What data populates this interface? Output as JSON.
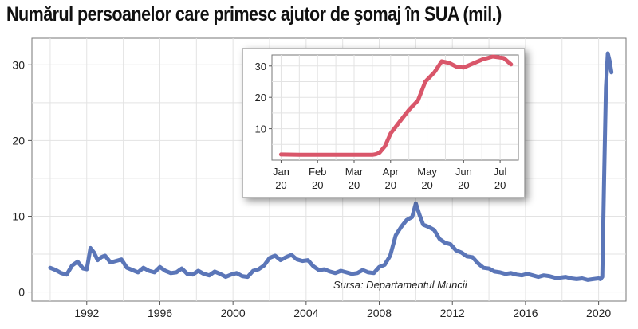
{
  "title": "Numărul persoanelor care primesc ajutor de şomaj în SUA (mil.)",
  "source": "Sursa: Departamentul Muncii",
  "colors": {
    "main_line": "#5b76b8",
    "inset_line": "#d9566a",
    "grid": "#e3e3e3"
  },
  "chart_data": [
    {
      "type": "line",
      "title": "",
      "xlabel": "",
      "ylabel": "",
      "xlim": [
        1989.0,
        2021.5
      ],
      "ylim": [
        -1.2,
        33.5
      ],
      "x_ticks": [
        1992,
        1996,
        2000,
        2004,
        2008,
        2012,
        2016,
        2020
      ],
      "y_ticks": [
        0,
        10,
        20,
        30
      ],
      "grid": true,
      "series": [
        {
          "x": [
            1990.0,
            1990.3,
            1990.6,
            1990.9,
            1991.2,
            1991.5,
            1991.8,
            1992.0,
            1992.2,
            1992.4,
            1992.6,
            1992.8,
            1993.0,
            1993.3,
            1993.6,
            1993.9,
            1994.2,
            1994.5,
            1994.8,
            1995.1,
            1995.4,
            1995.7,
            1996.0,
            1996.3,
            1996.6,
            1996.9,
            1997.2,
            1997.5,
            1997.8,
            1998.1,
            1998.4,
            1998.7,
            1999.0,
            1999.3,
            1999.6,
            1999.9,
            2000.2,
            2000.5,
            2000.8,
            2001.1,
            2001.4,
            2001.7,
            2002.0,
            2002.3,
            2002.6,
            2002.9,
            2003.2,
            2003.5,
            2003.8,
            2004.1,
            2004.4,
            2004.7,
            2005.0,
            2005.3,
            2005.6,
            2005.9,
            2006.2,
            2006.5,
            2006.8,
            2007.1,
            2007.4,
            2007.7,
            2008.0,
            2008.3,
            2008.6,
            2008.9,
            2009.2,
            2009.5,
            2009.8,
            2010.0,
            2010.2,
            2010.4,
            2010.7,
            2011.0,
            2011.3,
            2011.6,
            2011.9,
            2012.2,
            2012.5,
            2012.8,
            2013.1,
            2013.4,
            2013.7,
            2014.0,
            2014.3,
            2014.6,
            2014.9,
            2015.2,
            2015.5,
            2015.8,
            2016.1,
            2016.4,
            2016.7,
            2017.0,
            2017.3,
            2017.6,
            2017.9,
            2018.2,
            2018.5,
            2018.8,
            2019.1,
            2019.4,
            2019.7,
            2020.0,
            2020.1,
            2020.2,
            2020.3,
            2020.4,
            2020.5,
            2020.6,
            2020.7
          ],
          "y": [
            3.2,
            2.9,
            2.5,
            2.3,
            3.5,
            4.0,
            3.1,
            3.0,
            5.8,
            5.2,
            4.2,
            4.6,
            4.8,
            3.9,
            4.1,
            4.3,
            3.2,
            2.9,
            2.6,
            3.2,
            2.8,
            2.6,
            3.3,
            2.8,
            2.5,
            2.6,
            3.1,
            2.4,
            2.3,
            2.8,
            2.4,
            2.2,
            2.7,
            2.4,
            2.0,
            2.3,
            2.5,
            2.1,
            2.0,
            2.8,
            3.0,
            3.5,
            4.5,
            4.8,
            4.2,
            4.6,
            4.9,
            4.3,
            4.1,
            4.2,
            3.4,
            2.9,
            3.0,
            2.7,
            2.5,
            2.8,
            2.6,
            2.4,
            2.5,
            2.9,
            2.6,
            2.5,
            3.3,
            3.6,
            4.8,
            7.5,
            8.6,
            9.5,
            9.9,
            11.7,
            10.2,
            8.9,
            8.6,
            8.2,
            7.0,
            6.5,
            6.3,
            5.5,
            5.2,
            4.7,
            4.6,
            3.8,
            3.2,
            3.1,
            2.7,
            2.6,
            2.4,
            2.5,
            2.3,
            2.2,
            2.4,
            2.2,
            2.0,
            2.2,
            2.1,
            1.9,
            1.9,
            2.0,
            1.8,
            1.7,
            1.8,
            1.6,
            1.7,
            1.8,
            1.7,
            2.0,
            15.0,
            27.0,
            31.5,
            30.5,
            29.0
          ]
        }
      ]
    },
    {
      "type": "line",
      "title": "",
      "xlabel": "",
      "ylabel": "",
      "xlim": [
        -0.25,
        6.5
      ],
      "ylim": [
        0,
        33.5
      ],
      "x_ticks": [
        {
          "pos": 0,
          "label": [
            "Jan",
            "20"
          ]
        },
        {
          "pos": 1,
          "label": [
            "Feb",
            "20"
          ]
        },
        {
          "pos": 2,
          "label": [
            "Mar",
            "20"
          ]
        },
        {
          "pos": 3,
          "label": [
            "Apr",
            "20"
          ]
        },
        {
          "pos": 4,
          "label": [
            "May",
            "20"
          ]
        },
        {
          "pos": 5,
          "label": [
            "Jun",
            "20"
          ]
        },
        {
          "pos": 6,
          "label": [
            "Jul",
            "20"
          ]
        }
      ],
      "y_ticks": [
        10,
        20,
        30
      ],
      "grid": true,
      "series": [
        {
          "x": [
            0.0,
            0.5,
            1.0,
            1.5,
            2.0,
            2.3,
            2.5,
            2.6,
            2.7,
            2.85,
            3.0,
            3.2,
            3.5,
            3.75,
            3.95,
            4.2,
            4.4,
            4.6,
            4.8,
            5.0,
            5.2,
            5.5,
            5.8,
            6.1,
            6.3
          ],
          "y": [
            1.8,
            1.7,
            1.7,
            1.7,
            1.7,
            1.7,
            1.7,
            1.9,
            2.4,
            4.5,
            8.5,
            11.5,
            16.0,
            19.0,
            25.0,
            28.0,
            31.5,
            31.0,
            29.8,
            29.5,
            30.5,
            32.0,
            33.0,
            32.5,
            30.5
          ]
        }
      ]
    }
  ]
}
